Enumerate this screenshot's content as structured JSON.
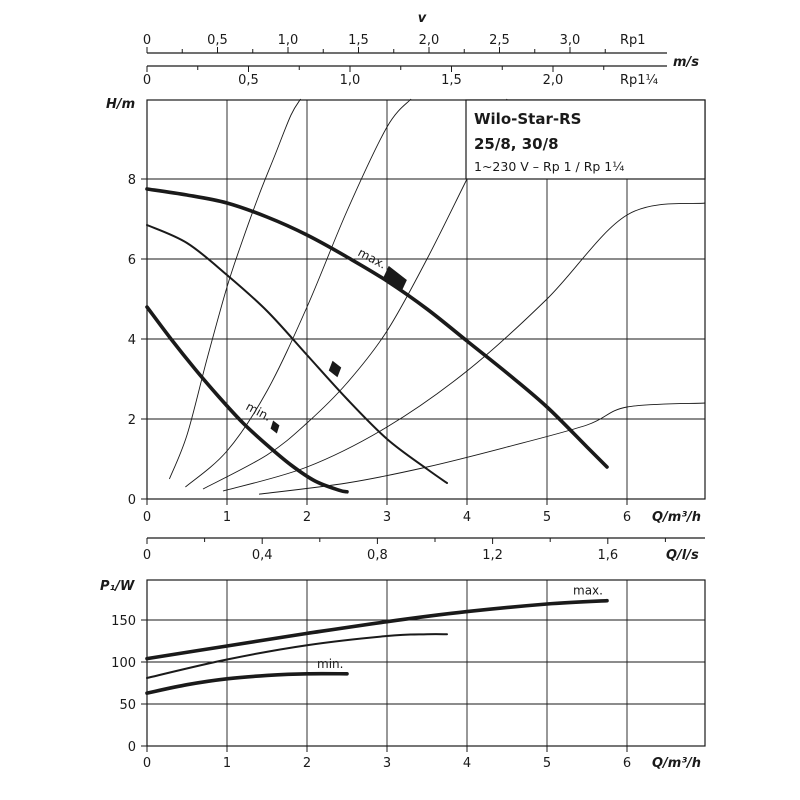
{
  "chart_data": [
    {
      "type": "line",
      "panel": "head",
      "title": "Wilo-Star-RS",
      "title_line2": "25/8, 30/8",
      "subtitle": "1~230 V – Rp 1 / Rp 1¼",
      "xlabel": "Q/m³/h",
      "ylabel": "H/m",
      "xlim": [
        0,
        7
      ],
      "ylim": [
        0,
        10
      ],
      "x_ticks": [
        "0",
        "1",
        "2",
        "3",
        "4",
        "5",
        "6"
      ],
      "y_ticks": [
        "0",
        "2",
        "4",
        "6",
        "8"
      ],
      "grid": true,
      "series": [
        {
          "name": "max.",
          "weight": "thick",
          "x": [
            0,
            0.5,
            1,
            1.5,
            2,
            2.5,
            3,
            3.5,
            4,
            4.5,
            5,
            5.5,
            5.75
          ],
          "y": [
            7.75,
            7.6,
            7.4,
            7.05,
            6.6,
            6.05,
            5.45,
            4.75,
            3.95,
            3.15,
            2.3,
            1.3,
            0.8
          ]
        },
        {
          "name": "",
          "weight": "medium",
          "x": [
            0,
            0.5,
            1,
            1.5,
            2,
            2.5,
            3,
            3.5,
            3.75
          ],
          "y": [
            6.85,
            6.4,
            5.6,
            4.7,
            3.6,
            2.5,
            1.5,
            0.75,
            0.4
          ]
        },
        {
          "name": "min.",
          "weight": "thick",
          "x": [
            0,
            0.3,
            0.6,
            0.9,
            1.2,
            1.5,
            1.8,
            2.1,
            2.4,
            2.5
          ],
          "y": [
            4.8,
            4.0,
            3.25,
            2.55,
            1.9,
            1.35,
            0.85,
            0.45,
            0.22,
            0.18
          ]
        }
      ],
      "system_curves": [
        {
          "x": [
            0.28,
            0.5,
            0.75,
            1.0,
            1.2,
            1.4,
            1.6,
            1.8,
            1.92
          ],
          "y": [
            0.5,
            1.6,
            3.5,
            5.3,
            6.5,
            7.6,
            8.6,
            9.6,
            10.0
          ]
        },
        {
          "x": [
            0.48,
            1.0,
            1.5,
            2.0,
            2.5,
            3.0,
            3.3
          ],
          "y": [
            0.3,
            1.2,
            2.7,
            4.8,
            7.2,
            9.3,
            10.0
          ]
        },
        {
          "x": [
            0.7,
            1.5,
            2.0,
            2.5,
            3.0,
            3.5,
            4.0,
            4.5
          ],
          "y": [
            0.25,
            1.1,
            1.9,
            2.9,
            4.2,
            6.0,
            8.0,
            10.0
          ]
        },
        {
          "x": [
            0.95,
            2.0,
            3.0,
            4.0,
            5.0,
            6.0,
            6.98
          ],
          "y": [
            0.2,
            0.8,
            1.8,
            3.2,
            5.0,
            7.1,
            7.4
          ]
        },
        {
          "x": [
            1.4,
            2.5,
            3.5,
            4.5,
            5.5,
            6.0,
            6.98
          ],
          "y": [
            0.12,
            0.4,
            0.8,
            1.3,
            1.85,
            2.3,
            2.4
          ]
        }
      ],
      "marks": [
        {
          "x": 3.1,
          "y": 5.5,
          "label": "max."
        },
        {
          "x": 2.35,
          "y": 3.25,
          "label": ""
        },
        {
          "x": 1.6,
          "y": 1.8,
          "label": "min."
        }
      ],
      "top_axes": [
        {
          "label": "v",
          "ticks": [
            "0",
            "0,5",
            "1,0",
            "1,5",
            "2,0",
            "2,5",
            "3,0"
          ],
          "end_label": "Rp1"
        },
        {
          "label": "m/s",
          "ticks": [
            "0",
            "0,5",
            "1,0",
            "1,5",
            "2,0"
          ],
          "end_label": "Rp1¼"
        }
      ],
      "secondary_x": {
        "label": "Q/l/s",
        "ticks": [
          "0",
          "0,4",
          "0,8",
          "1,2",
          "1,6"
        ]
      }
    },
    {
      "type": "line",
      "panel": "power",
      "xlabel": "Q/m³/h",
      "ylabel": "P₁/W",
      "xlim": [
        0,
        7
      ],
      "ylim": [
        0,
        200
      ],
      "x_ticks": [
        "0",
        "1",
        "2",
        "3",
        "4",
        "5",
        "6"
      ],
      "y_ticks": [
        "0",
        "50",
        "100",
        "150"
      ],
      "grid": true,
      "series": [
        {
          "name": "max.",
          "weight": "thick",
          "x": [
            0,
            1,
            2,
            3,
            4,
            5,
            5.75
          ],
          "y": [
            104,
            119,
            134,
            148,
            160,
            169,
            173
          ]
        },
        {
          "name": "",
          "weight": "medium",
          "x": [
            0,
            1,
            2,
            3,
            3.5,
            3.75
          ],
          "y": [
            81,
            103,
            120,
            131,
            133,
            133
          ]
        },
        {
          "name": "min.",
          "weight": "thick",
          "x": [
            0,
            0.5,
            1,
            1.5,
            2,
            2.5
          ],
          "y": [
            63,
            73,
            80,
            84,
            86,
            86
          ]
        }
      ]
    }
  ]
}
